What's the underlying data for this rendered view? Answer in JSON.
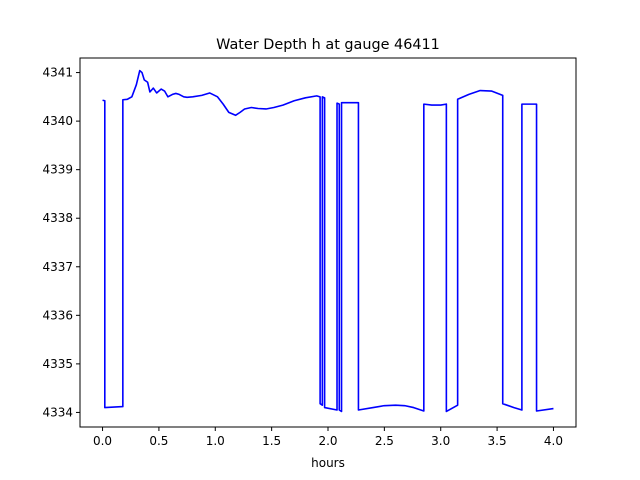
{
  "chart_data": {
    "type": "line",
    "title": "Water Depth h at gauge 46411",
    "xlabel": "hours",
    "ylabel": "",
    "xlim": [
      -0.2,
      4.2
    ],
    "ylim": [
      4333.7,
      4341.3
    ],
    "xticks": [
      0.0,
      0.5,
      1.0,
      1.5,
      2.0,
      2.5,
      3.0,
      3.5,
      4.0
    ],
    "xtick_labels": [
      "0.0",
      "0.5",
      "1.0",
      "1.5",
      "2.0",
      "2.5",
      "3.0",
      "3.5",
      "4.0"
    ],
    "yticks": [
      4334,
      4335,
      4336,
      4337,
      4338,
      4339,
      4340,
      4341
    ],
    "ytick_labels": [
      "4334",
      "4335",
      "4336",
      "4337",
      "4338",
      "4339",
      "4340",
      "4341"
    ],
    "grid": false,
    "series": [
      {
        "color": "#0000ff",
        "x": [
          0.0,
          0.02,
          0.02,
          0.18,
          0.18,
          0.22,
          0.26,
          0.3,
          0.33,
          0.35,
          0.37,
          0.4,
          0.42,
          0.45,
          0.48,
          0.52,
          0.55,
          0.58,
          0.62,
          0.65,
          0.68,
          0.72,
          0.75,
          0.8,
          0.88,
          0.95,
          1.02,
          1.07,
          1.12,
          1.18,
          1.22,
          1.26,
          1.32,
          1.38,
          1.45,
          1.52,
          1.6,
          1.7,
          1.8,
          1.9,
          1.93,
          1.93,
          1.95,
          1.95,
          1.97,
          1.97,
          2.08,
          2.08,
          2.1,
          2.1,
          2.12,
          2.12,
          2.27,
          2.27,
          2.4,
          2.5,
          2.6,
          2.68,
          2.76,
          2.85,
          2.85,
          2.92,
          3.0,
          3.05,
          3.05,
          3.15,
          3.15,
          3.25,
          3.35,
          3.45,
          3.55,
          3.55,
          3.65,
          3.72,
          3.72,
          3.85,
          3.85,
          4.0
        ],
        "y": [
          4340.43,
          4340.42,
          4334.1,
          4334.12,
          4340.44,
          4340.45,
          4340.5,
          4340.75,
          4341.04,
          4341.0,
          4340.85,
          4340.8,
          4340.6,
          4340.68,
          4340.58,
          4340.66,
          4340.62,
          4340.5,
          4340.55,
          4340.57,
          4340.55,
          4340.5,
          4340.49,
          4340.5,
          4340.53,
          4340.58,
          4340.5,
          4340.35,
          4340.18,
          4340.12,
          4340.18,
          4340.25,
          4340.28,
          4340.26,
          4340.25,
          4340.28,
          4340.33,
          4340.42,
          4340.48,
          4340.52,
          4340.5,
          4334.18,
          4334.15,
          4340.5,
          4340.48,
          4334.1,
          4334.05,
          4340.37,
          4340.35,
          4334.05,
          4334.02,
          4340.38,
          4340.38,
          4334.05,
          4334.1,
          4334.14,
          4334.15,
          4334.14,
          4334.1,
          4334.03,
          4340.35,
          4340.33,
          4340.33,
          4340.35,
          4334.02,
          4334.15,
          4340.45,
          4340.55,
          4340.63,
          4340.62,
          4340.53,
          4334.18,
          4334.1,
          4334.05,
          4340.35,
          4340.35,
          4334.03,
          4334.08
        ]
      }
    ]
  }
}
